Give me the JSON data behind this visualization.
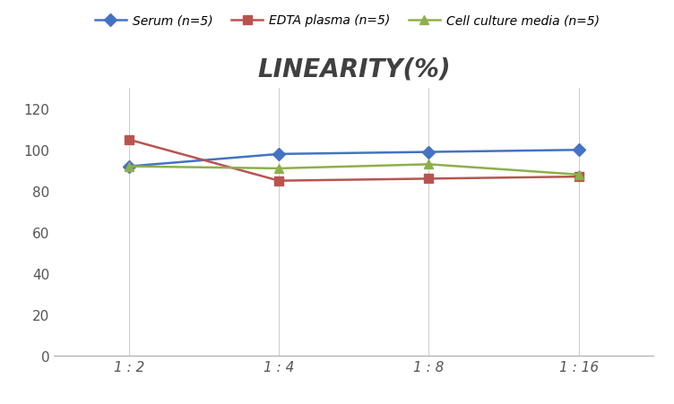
{
  "title": "LINEARITY(%)",
  "x_labels": [
    "1 : 2",
    "1 : 4",
    "1 : 8",
    "1 : 16"
  ],
  "x_positions": [
    0,
    1,
    2,
    3
  ],
  "series": [
    {
      "label": "Serum (n=5)",
      "values": [
        92,
        98,
        99,
        100
      ],
      "color": "#4472C4",
      "marker": "D",
      "markersize": 7,
      "linewidth": 1.8
    },
    {
      "label": "EDTA plasma (n=5)",
      "values": [
        105,
        85,
        86,
        87
      ],
      "color": "#B85450",
      "marker": "s",
      "markersize": 7,
      "linewidth": 1.8
    },
    {
      "label": "Cell culture media (n=5)",
      "values": [
        92,
        91,
        93,
        88
      ],
      "color": "#8DB04A",
      "marker": "^",
      "markersize": 7,
      "linewidth": 1.8
    }
  ],
  "ylim": [
    0,
    130
  ],
  "yticks": [
    0,
    20,
    40,
    60,
    80,
    100,
    120
  ],
  "background_color": "#FFFFFF",
  "grid_color": "#D0D0D0",
  "title_fontsize": 20,
  "title_color": "#404040",
  "legend_fontsize": 10,
  "tick_fontsize": 11
}
